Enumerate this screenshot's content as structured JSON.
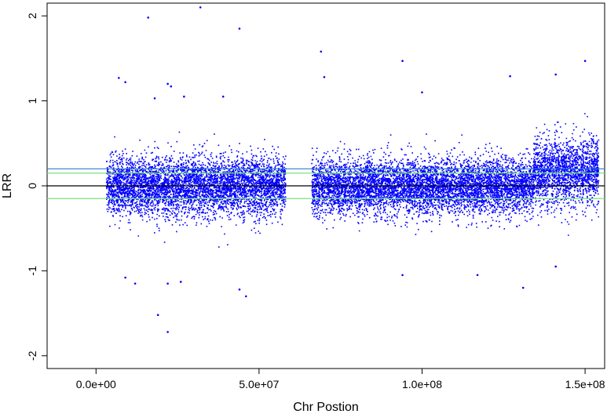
{
  "chart_data": {
    "type": "scatter",
    "title": "",
    "xlabel": "Chr Postion",
    "ylabel": "LRR",
    "xlim": [
      -15000000,
      156000000
    ],
    "ylim": [
      -2.15,
      2.15
    ],
    "x_ticks": [
      0,
      50000000,
      100000000,
      150000000
    ],
    "x_tick_labels": [
      "0.0e+00",
      "5.0e+07",
      "1.0e+08",
      "1.5e+08"
    ],
    "y_ticks": [
      -2,
      -1,
      0,
      1,
      2
    ],
    "y_tick_labels": [
      "-2",
      "-1",
      "0",
      "1",
      "2"
    ],
    "grid": false,
    "point_color": "#0000ff",
    "segments": [
      {
        "x_start": 3000000,
        "x_end": 55000000,
        "mean": 0.0,
        "sd": 0.17
      },
      {
        "x_start": 55000000,
        "x_end": 58000000,
        "mean": 0.02,
        "sd": 0.15
      },
      {
        "x_start": 66000000,
        "x_end": 134000000,
        "mean": 0.0,
        "sd": 0.16
      },
      {
        "x_start": 134000000,
        "x_end": 154000000,
        "mean": 0.17,
        "sd": 0.2
      }
    ],
    "outliers": [
      {
        "x": 16000000,
        "y": 1.98
      },
      {
        "x": 32000000,
        "y": 2.1
      },
      {
        "x": 44000000,
        "y": 1.85
      },
      {
        "x": 69000000,
        "y": 1.58
      },
      {
        "x": 70000000,
        "y": 1.28
      },
      {
        "x": 94000000,
        "y": 1.47
      },
      {
        "x": 150000000,
        "y": 1.47
      },
      {
        "x": 141000000,
        "y": 1.31
      },
      {
        "x": 7000000,
        "y": 1.27
      },
      {
        "x": 9000000,
        "y": 1.22
      },
      {
        "x": 22000000,
        "y": 1.2
      },
      {
        "x": 23000000,
        "y": 1.17
      },
      {
        "x": 18000000,
        "y": 1.03
      },
      {
        "x": 27000000,
        "y": 1.05
      },
      {
        "x": 39000000,
        "y": 1.05
      },
      {
        "x": 100000000,
        "y": 1.1
      },
      {
        "x": 127000000,
        "y": 1.29
      },
      {
        "x": 12000000,
        "y": -1.15
      },
      {
        "x": 22000000,
        "y": -1.15
      },
      {
        "x": 26000000,
        "y": -1.13
      },
      {
        "x": 44000000,
        "y": -1.22
      },
      {
        "x": 46000000,
        "y": -1.3
      },
      {
        "x": 19000000,
        "y": -1.52
      },
      {
        "x": 22000000,
        "y": -1.72
      },
      {
        "x": 94000000,
        "y": -1.05
      },
      {
        "x": 117000000,
        "y": -1.05
      },
      {
        "x": 131000000,
        "y": -1.2
      },
      {
        "x": 9000000,
        "y": -1.08
      },
      {
        "x": 141000000,
        "y": -0.95
      }
    ],
    "hlines": [
      {
        "y": 0.2,
        "color": "#2c7bcb"
      },
      {
        "y": 0.15,
        "color": "#7ae27a"
      },
      {
        "y": 0.0,
        "color": "#000000"
      },
      {
        "y": -0.15,
        "color": "#7ae27a"
      }
    ]
  }
}
